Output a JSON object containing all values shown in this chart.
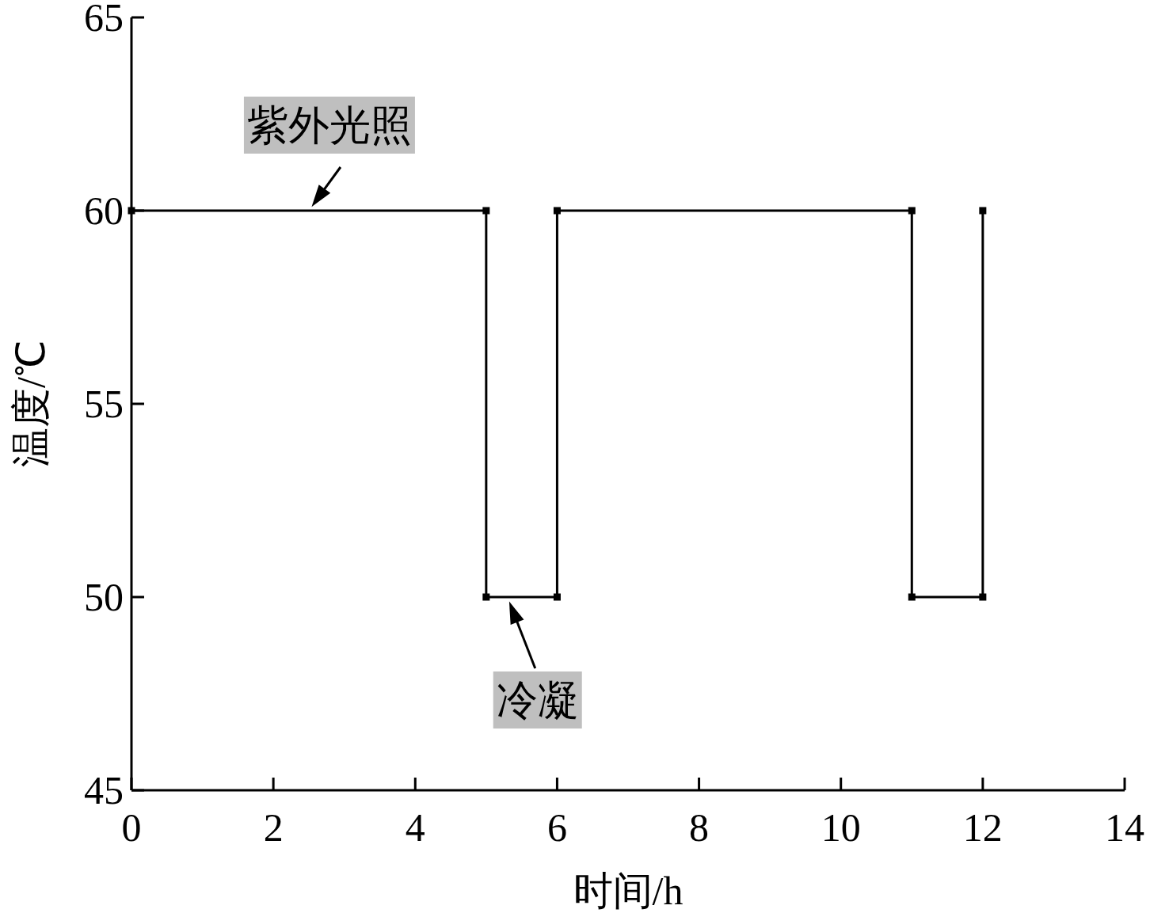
{
  "chart_data": {
    "type": "line",
    "xlabel": "时间/h",
    "ylabel": "温度/℃",
    "x": [
      0,
      5,
      5,
      6,
      6,
      11,
      11,
      12,
      12
    ],
    "series": [
      {
        "color": "#000000",
        "values": [
          60,
          60,
          50,
          50,
          60,
          60,
          50,
          50,
          60
        ]
      }
    ],
    "marker": "square",
    "line_style": "solid",
    "xlim": [
      0,
      14
    ],
    "xticks": [
      0,
      2,
      4,
      6,
      8,
      10,
      12,
      14
    ],
    "ylim": [
      45,
      65
    ],
    "yticks": [
      45,
      50,
      55,
      60,
      65
    ],
    "annotations": [
      {
        "text": "紫外光照",
        "x": 2.5,
        "y": 60
      },
      {
        "text": "冷凝",
        "x": 5.3,
        "y": 50
      }
    ]
  }
}
